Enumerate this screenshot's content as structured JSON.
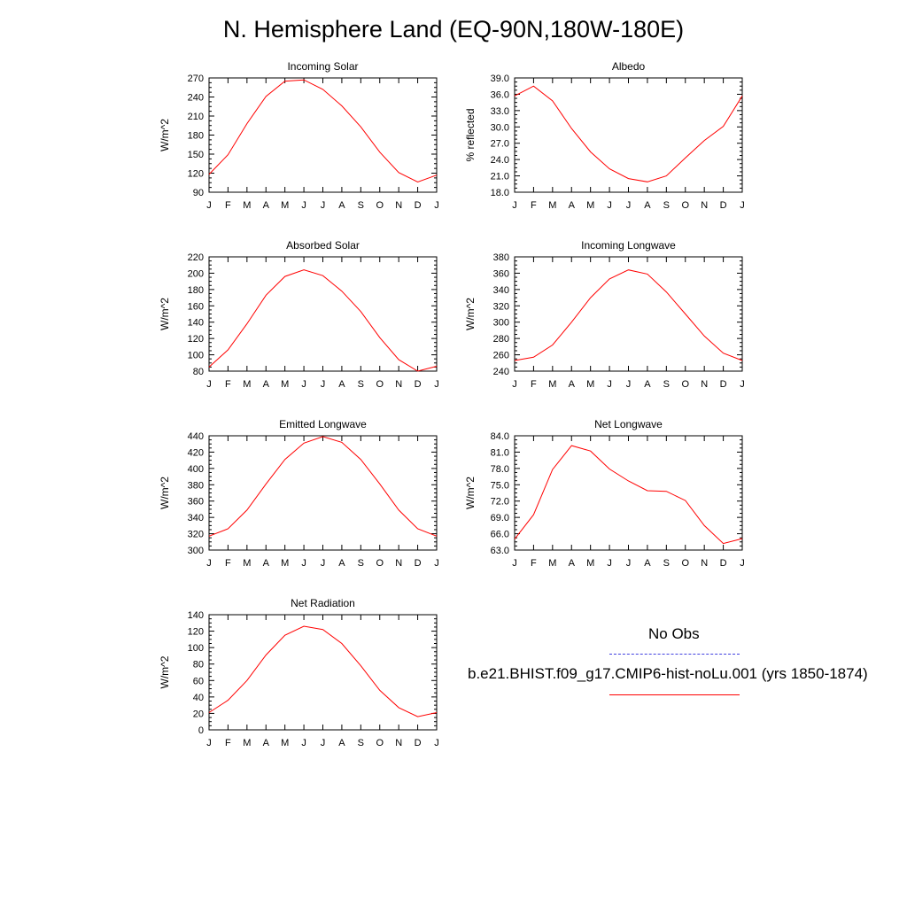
{
  "title": "N. Hemisphere Land (EQ-90N,180W-180E)",
  "legend": {
    "obs_label": "No Obs",
    "obs_color": "#4040e0",
    "model_label": "b.e21.BHIST.f09_g17.CMIP6-hist-noLu.001 (yrs 1850-1874)",
    "model_color": "#ff0000"
  },
  "chart_data": [
    {
      "type": "line",
      "title": "Incoming Solar",
      "ylabel": "W/m^2",
      "xlabel": "",
      "categories": [
        "J",
        "F",
        "M",
        "A",
        "M",
        "J",
        "J",
        "A",
        "S",
        "O",
        "N",
        "D",
        "J"
      ],
      "ylim": [
        90,
        270
      ],
      "yticks": [
        "90",
        "120",
        "150",
        "180",
        "210",
        "240",
        "270"
      ],
      "series": [
        {
          "values": [
            118,
            149,
            198,
            241,
            265,
            267,
            252,
            226,
            193,
            153,
            121,
            106,
            117
          ],
          "color": "#ff0000"
        }
      ],
      "grid": false
    },
    {
      "type": "line",
      "title": "Albedo",
      "ylabel": "% reflected",
      "xlabel": "",
      "categories": [
        "J",
        "F",
        "M",
        "A",
        "M",
        "J",
        "J",
        "A",
        "S",
        "O",
        "N",
        "D",
        "J"
      ],
      "ylim": [
        18.0,
        39.0
      ],
      "yticks": [
        "18.0",
        "21.0",
        "24.0",
        "27.0",
        "30.0",
        "33.0",
        "36.0",
        "39.0"
      ],
      "series": [
        {
          "values": [
            35.7,
            37.5,
            34.8,
            29.7,
            25.4,
            22.3,
            20.5,
            19.9,
            21.0,
            24.3,
            27.5,
            30.1,
            35.7
          ],
          "color": "#ff0000"
        }
      ],
      "grid": false
    },
    {
      "type": "line",
      "title": "Absorbed Solar",
      "ylabel": "W/m^2",
      "xlabel": "",
      "categories": [
        "J",
        "F",
        "M",
        "A",
        "M",
        "J",
        "J",
        "A",
        "S",
        "O",
        "N",
        "D",
        "J"
      ],
      "ylim": [
        80,
        220
      ],
      "yticks": [
        "80",
        "100",
        "120",
        "140",
        "160",
        "180",
        "200",
        "220"
      ],
      "series": [
        {
          "values": [
            85,
            106,
            138,
            173,
            196,
            204,
            197,
            178,
            153,
            121,
            94,
            80,
            86
          ],
          "color": "#ff0000"
        }
      ],
      "grid": false
    },
    {
      "type": "line",
      "title": "Incoming Longwave",
      "ylabel": "W/m^2",
      "xlabel": "",
      "categories": [
        "J",
        "F",
        "M",
        "A",
        "M",
        "J",
        "J",
        "A",
        "S",
        "O",
        "N",
        "D",
        "J"
      ],
      "ylim": [
        240,
        380
      ],
      "yticks": [
        "240",
        "260",
        "280",
        "300",
        "320",
        "340",
        "360",
        "380"
      ],
      "series": [
        {
          "values": [
            253,
            257,
            272,
            300,
            330,
            353,
            364,
            359,
            337,
            310,
            283,
            262,
            253
          ],
          "color": "#ff0000"
        }
      ],
      "grid": false
    },
    {
      "type": "line",
      "title": "Emitted Longwave",
      "ylabel": "W/m^2",
      "xlabel": "",
      "categories": [
        "J",
        "F",
        "M",
        "A",
        "M",
        "J",
        "J",
        "A",
        "S",
        "O",
        "N",
        "D",
        "J"
      ],
      "ylim": [
        300,
        440
      ],
      "yticks": [
        "300",
        "320",
        "340",
        "360",
        "380",
        "400",
        "420",
        "440"
      ],
      "series": [
        {
          "values": [
            317,
            326,
            349,
            381,
            411,
            431,
            439,
            432,
            411,
            381,
            349,
            326,
            317
          ],
          "color": "#ff0000"
        }
      ],
      "grid": false
    },
    {
      "type": "line",
      "title": "Net Longwave",
      "ylabel": "W/m^2",
      "xlabel": "",
      "categories": [
        "J",
        "F",
        "M",
        "A",
        "M",
        "J",
        "J",
        "A",
        "S",
        "O",
        "N",
        "D",
        "J"
      ],
      "ylim": [
        63.0,
        84.0
      ],
      "yticks": [
        "63.0",
        "66.0",
        "69.0",
        "72.0",
        "75.0",
        "78.0",
        "81.0",
        "84.0"
      ],
      "series": [
        {
          "values": [
            65.0,
            69.5,
            77.8,
            82.2,
            81.2,
            77.9,
            75.7,
            73.9,
            73.8,
            72.1,
            67.5,
            64.2,
            65.1
          ],
          "color": "#ff0000"
        }
      ],
      "grid": false
    },
    {
      "type": "line",
      "title": "Net Radiation",
      "ylabel": "W/m^2",
      "xlabel": "",
      "categories": [
        "J",
        "F",
        "M",
        "A",
        "M",
        "J",
        "J",
        "A",
        "S",
        "O",
        "N",
        "D",
        "J"
      ],
      "ylim": [
        0,
        140
      ],
      "yticks": [
        "0",
        "20",
        "40",
        "60",
        "80",
        "100",
        "120",
        "140"
      ],
      "series": [
        {
          "values": [
            21,
            36,
            60,
            91,
            115,
            126,
            122,
            105,
            78,
            48,
            27,
            16,
            21
          ],
          "color": "#ff0000"
        }
      ],
      "grid": false
    }
  ]
}
